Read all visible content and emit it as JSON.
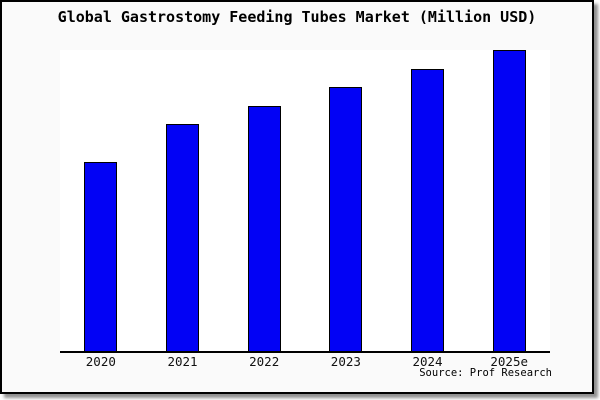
{
  "chart": {
    "title": "Global Gastrostomy Feeding Tubes Market (Million USD)",
    "source": "Source: Prof Research"
  },
  "chart_data": {
    "type": "bar",
    "title": "Global Gastrostomy Feeding Tubes Market (Million USD)",
    "categories": [
      "2020",
      "2021",
      "2022",
      "2023",
      "2024",
      "2025e"
    ],
    "values": [
      62.8,
      75.4,
      81.4,
      87.7,
      93.7,
      100
    ],
    "value_note": "no y-axis shown; values estimated as percent of tallest bar",
    "xlabel": "",
    "ylabel": "",
    "ylim": [
      0,
      100
    ],
    "grid": false,
    "legend": "none",
    "bar_color": "#0202f5",
    "bar_border_color": "#000000",
    "plot_bg": "#ffffff",
    "frame_bg": "#fafafa",
    "annotations": [
      "Source: Prof Research"
    ]
  }
}
